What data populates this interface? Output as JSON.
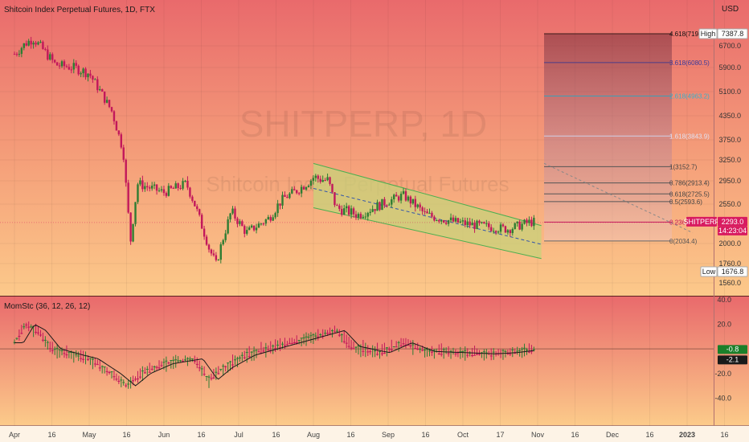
{
  "header": {
    "symbol_title": "Shitcoin Index Perpetual Futures, 1D, FTX",
    "currency": "USD"
  },
  "watermark": {
    "ticker": "SHITPERP, 1D",
    "name": "Shitcoin Index Perpetual Futures"
  },
  "colors": {
    "background_top": "#E8696B",
    "background_bottom": "#FCCB8A",
    "up_candle": "#2E7D32",
    "down_candle": "#C2185B",
    "channel_fill": "#C8D27A",
    "channel_line": "#4CAF50",
    "price_tag": "#D81B60"
  },
  "price_badges": {
    "high_label": "High",
    "high_value": "7387.8",
    "low_label": "Low",
    "low_value": "1676.8",
    "last_symbol": "SHITPERP",
    "last_value": "2293.0",
    "countdown": "14:23:04"
  },
  "indicator": {
    "title": "MomStc (36, 12, 26, 12)",
    "value_a": "-0.8",
    "value_b": "-2.1"
  },
  "chart_data": [
    {
      "type": "candlestick",
      "title": "Shitcoin Index Perpetual Futures, 1D, FTX",
      "ylabel": "USD",
      "y_ticks": [
        "6700.0",
        "5900.0",
        "5100.0",
        "4350.0",
        "3750.0",
        "3250.0",
        "2950.0",
        "2550.0",
        "2000.0",
        "1760.0",
        "1560.0"
      ],
      "x_ticks": [
        "Apr",
        "16",
        "May",
        "16",
        "Jun",
        "16",
        "Jul",
        "16",
        "Aug",
        "16",
        "Sep",
        "16",
        "Oct",
        "17",
        "Nov",
        "16",
        "Dec",
        "16",
        "2023",
        "16"
      ],
      "x_tick_months": [
        0,
        0.5,
        1,
        1.5,
        2,
        2.5,
        3,
        3.5,
        4,
        4.5,
        5,
        5.5,
        6,
        6.5,
        7,
        7.5,
        8,
        8.5,
        9,
        9.5
      ],
      "close_path": [
        {
          "month": 0.0,
          "close": 6400
        },
        {
          "month": 0.15,
          "close": 6800
        },
        {
          "month": 0.25,
          "close": 7000
        },
        {
          "month": 0.4,
          "close": 6500
        },
        {
          "month": 0.55,
          "close": 6000
        },
        {
          "month": 0.8,
          "close": 5900
        },
        {
          "month": 1.0,
          "close": 5700
        },
        {
          "month": 1.3,
          "close": 4500
        },
        {
          "month": 1.45,
          "close": 3500
        },
        {
          "month": 1.55,
          "close": 2000
        },
        {
          "month": 1.65,
          "close": 2900
        },
        {
          "month": 2.0,
          "close": 2750
        },
        {
          "month": 2.3,
          "close": 2900
        },
        {
          "month": 2.6,
          "close": 1950
        },
        {
          "month": 2.7,
          "close": 1750
        },
        {
          "month": 2.9,
          "close": 2450
        },
        {
          "month": 3.1,
          "close": 2150
        },
        {
          "month": 3.4,
          "close": 2350
        },
        {
          "month": 3.6,
          "close": 2650
        },
        {
          "month": 3.8,
          "close": 2800
        },
        {
          "month": 4.0,
          "close": 3000
        },
        {
          "month": 4.2,
          "close": 2950
        },
        {
          "month": 4.3,
          "close": 2500
        },
        {
          "month": 4.6,
          "close": 2400
        },
        {
          "month": 4.9,
          "close": 2550
        },
        {
          "month": 5.2,
          "close": 2700
        },
        {
          "month": 5.5,
          "close": 2400
        },
        {
          "month": 5.9,
          "close": 2300
        },
        {
          "month": 6.2,
          "close": 2250
        },
        {
          "month": 6.6,
          "close": 2200
        },
        {
          "month": 6.9,
          "close": 2300
        }
      ],
      "channel": {
        "upper": [
          {
            "month": 4.0,
            "price": 3200
          },
          {
            "month": 7.05,
            "price": 2250
          }
        ],
        "lower": [
          {
            "month": 4.0,
            "price": 2500
          },
          {
            "month": 7.05,
            "price": 1820
          }
        ],
        "mid": [
          {
            "month": 4.0,
            "price": 2820
          },
          {
            "month": 7.05,
            "price": 1990
          }
        ]
      },
      "fib_levels": [
        {
          "ratio": "4.618",
          "label": "4.618(7198",
          "price": 7198
        },
        {
          "ratio": "3.618",
          "label": "3.618(6080.5)",
          "price": 6080.5
        },
        {
          "ratio": "2.618",
          "label": "2.618(4963.2)",
          "price": 4963.2
        },
        {
          "ratio": "1.618",
          "label": "1.618(3843.9)",
          "price": 3843.9
        },
        {
          "ratio": "1",
          "label": "1(3152.7)",
          "price": 3152.7
        },
        {
          "ratio": "0.786",
          "label": "0.786(2913.4)",
          "price": 2913.4
        },
        {
          "ratio": "0.618",
          "label": "0.618(2725.5)",
          "price": 2725.5
        },
        {
          "ratio": "0.5",
          "label": "0.5(2593.6)",
          "price": 2593.6
        },
        {
          "ratio": "0.236",
          "label": "0.236(2298.3)",
          "price": 2298.3
        },
        {
          "ratio": "0",
          "label": "0(2034.4)",
          "price": 2034.4
        }
      ],
      "last_price": 2293.0
    },
    {
      "type": "oscillator",
      "title": "MomStc (36, 12, 26, 12)",
      "y_ticks": [
        "40.0",
        "20.0",
        "-20.0",
        "-40.0"
      ],
      "ylim": [
        -45,
        40
      ],
      "values": [
        {
          "month": 0.0,
          "value": 5
        },
        {
          "month": 0.15,
          "value": 20
        },
        {
          "month": 0.3,
          "value": 15
        },
        {
          "month": 0.5,
          "value": 0
        },
        {
          "month": 0.8,
          "value": -5
        },
        {
          "month": 1.0,
          "value": -8
        },
        {
          "month": 1.3,
          "value": -20
        },
        {
          "month": 1.5,
          "value": -30
        },
        {
          "month": 1.7,
          "value": -20
        },
        {
          "month": 2.0,
          "value": -12
        },
        {
          "month": 2.4,
          "value": -8
        },
        {
          "month": 2.6,
          "value": -25
        },
        {
          "month": 2.8,
          "value": -15
        },
        {
          "month": 3.1,
          "value": -5
        },
        {
          "month": 3.4,
          "value": 0
        },
        {
          "month": 3.7,
          "value": 5
        },
        {
          "month": 4.0,
          "value": 10
        },
        {
          "month": 4.3,
          "value": 15
        },
        {
          "month": 4.5,
          "value": 2
        },
        {
          "month": 4.9,
          "value": -3
        },
        {
          "month": 5.2,
          "value": 5
        },
        {
          "month": 5.5,
          "value": -2
        },
        {
          "month": 5.9,
          "value": -3
        },
        {
          "month": 6.3,
          "value": -4
        },
        {
          "month": 6.6,
          "value": -3
        },
        {
          "month": 6.9,
          "value": -0.8
        }
      ],
      "signal_last": -2.1
    }
  ]
}
